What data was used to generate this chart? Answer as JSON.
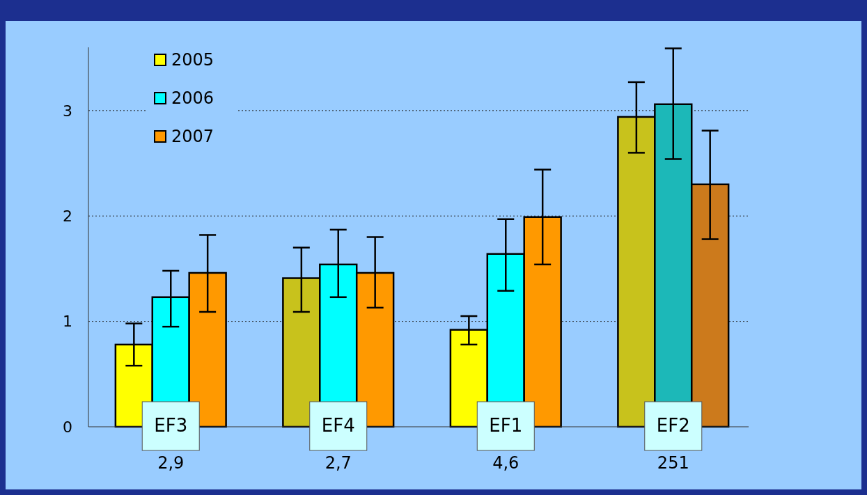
{
  "chart_data": {
    "type": "bar",
    "categories": [
      "EF3",
      "EF4",
      "EF1",
      "EF2"
    ],
    "series": [
      {
        "name": "2005",
        "color": "#ffff00",
        "colors": [
          "#ffff00",
          "#c8c21c",
          "#ffff00",
          "#c8c21c"
        ],
        "values": [
          0.78,
          1.41,
          0.92,
          2.94
        ],
        "errors": [
          [
            0.58,
            0.98
          ],
          [
            1.09,
            1.7
          ],
          [
            0.78,
            1.05
          ],
          [
            2.6,
            3.27
          ]
        ]
      },
      {
        "name": "2006",
        "color": "#00ffff",
        "colors": [
          "#00ffff",
          "#00ffff",
          "#00ffff",
          "#1cb8b8"
        ],
        "values": [
          1.23,
          1.54,
          1.64,
          3.06
        ],
        "errors": [
          [
            0.95,
            1.48
          ],
          [
            1.23,
            1.87
          ],
          [
            1.29,
            1.97
          ],
          [
            2.54,
            3.59
          ]
        ]
      },
      {
        "name": "2007",
        "color": "#ff9900",
        "colors": [
          "#ff9900",
          "#ff9900",
          "#ff9900",
          "#cc7a1c"
        ],
        "values": [
          1.46,
          1.46,
          1.99,
          2.3
        ],
        "errors": [
          [
            1.09,
            1.82
          ],
          [
            1.13,
            1.8
          ],
          [
            1.54,
            2.44
          ],
          [
            1.78,
            2.81
          ]
        ]
      }
    ],
    "annotations": [
      "2,9",
      "2,7",
      "4,6",
      "251"
    ],
    "ylim": [
      0,
      3.6
    ],
    "yticks": [
      0,
      1,
      2,
      3
    ],
    "grid": "y",
    "legend": "top left"
  }
}
